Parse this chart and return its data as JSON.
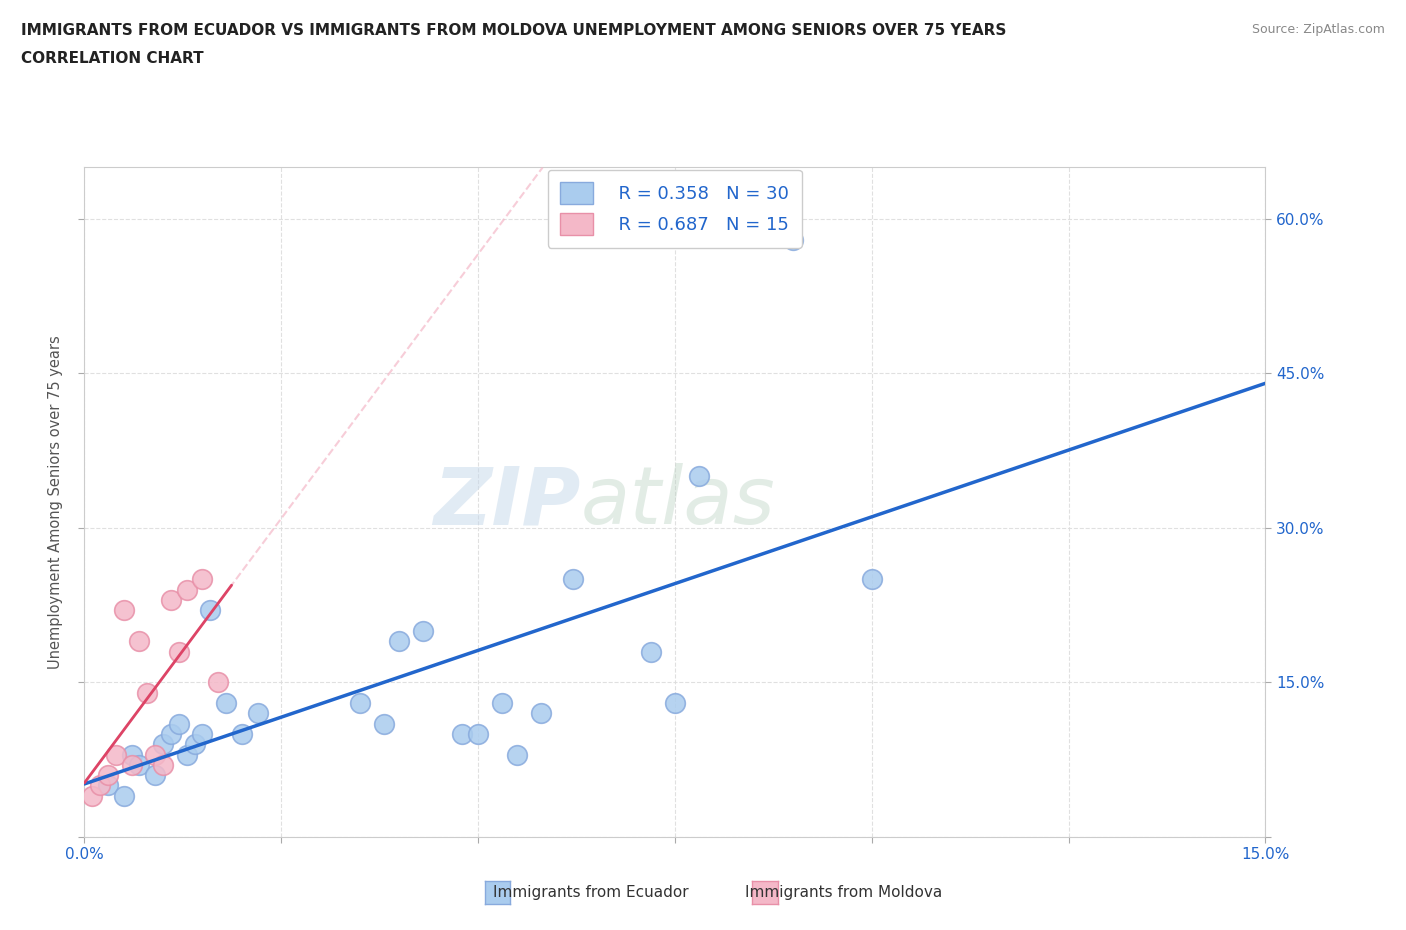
{
  "title_line1": "IMMIGRANTS FROM ECUADOR VS IMMIGRANTS FROM MOLDOVA UNEMPLOYMENT AMONG SENIORS OVER 75 YEARS",
  "title_line2": "CORRELATION CHART",
  "source": "Source: ZipAtlas.com",
  "ylabel": "Unemployment Among Seniors over 75 years",
  "xlim": [
    0.0,
    0.15
  ],
  "ylim": [
    0.0,
    0.65
  ],
  "xticks": [
    0.0,
    0.025,
    0.05,
    0.075,
    0.1,
    0.125,
    0.15
  ],
  "yticks": [
    0.0,
    0.15,
    0.3,
    0.45,
    0.6
  ],
  "ecuador_x": [
    0.003,
    0.005,
    0.006,
    0.007,
    0.009,
    0.01,
    0.011,
    0.012,
    0.013,
    0.014,
    0.015,
    0.016,
    0.018,
    0.02,
    0.022,
    0.035,
    0.038,
    0.04,
    0.043,
    0.048,
    0.05,
    0.053,
    0.055,
    0.058,
    0.062,
    0.072,
    0.075,
    0.078,
    0.09,
    0.1
  ],
  "ecuador_y": [
    0.05,
    0.04,
    0.08,
    0.07,
    0.06,
    0.09,
    0.1,
    0.11,
    0.08,
    0.09,
    0.1,
    0.22,
    0.13,
    0.1,
    0.12,
    0.13,
    0.11,
    0.19,
    0.2,
    0.1,
    0.1,
    0.13,
    0.08,
    0.12,
    0.25,
    0.18,
    0.13,
    0.35,
    0.58,
    0.25
  ],
  "moldova_x": [
    0.001,
    0.002,
    0.003,
    0.004,
    0.005,
    0.006,
    0.007,
    0.008,
    0.009,
    0.01,
    0.011,
    0.012,
    0.013,
    0.015,
    0.017
  ],
  "moldova_y": [
    0.04,
    0.05,
    0.06,
    0.08,
    0.22,
    0.07,
    0.19,
    0.14,
    0.08,
    0.07,
    0.23,
    0.18,
    0.24,
    0.25,
    0.15
  ],
  "ecuador_color": "#aaccee",
  "ecuador_edge": "#88aadd",
  "moldova_color": "#f4b8c8",
  "moldova_edge": "#e890a8",
  "ecuador_R": 0.358,
  "ecuador_N": 30,
  "moldova_R": 0.687,
  "moldova_N": 15,
  "trendline_ecuador_color": "#2266cc",
  "trendline_moldova_color": "#dd4466",
  "trendline_moldova_dashed_color": "#f4b8c8",
  "legend_color": "#2266cc",
  "watermark_zip_color": "#c8d8e8",
  "watermark_atlas_color": "#c8d8e0",
  "background_color": "#ffffff",
  "grid_color": "#dddddd",
  "title_color": "#222222",
  "axis_label_color": "#555555",
  "tick_color": "#2266cc"
}
